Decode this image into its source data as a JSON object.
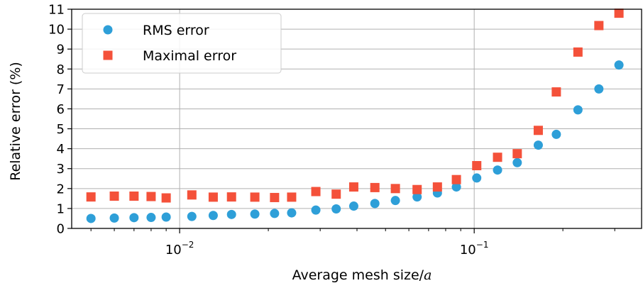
{
  "chart_data": {
    "type": "scatter",
    "title": "",
    "xlabel": "Average mesh size/",
    "xlabel_math": "a",
    "ylabel": "Relative error  (%)",
    "xscale": "log",
    "xlim": [
      0.0043,
      0.37
    ],
    "ylim": [
      0,
      11
    ],
    "grid": true,
    "legend_position": "upper-left",
    "yticks": [
      0,
      1,
      2,
      3,
      4,
      5,
      6,
      7,
      8,
      9,
      10,
      11
    ],
    "xticks": [
      {
        "value": 0.01,
        "base": "10",
        "exp": "−2"
      },
      {
        "value": 0.1,
        "base": "10",
        "exp": "−1"
      }
    ],
    "series": [
      {
        "name": "RMS error",
        "marker": "circle",
        "color": "#2e9fd8",
        "x": [
          0.005,
          0.006,
          0.007,
          0.008,
          0.009,
          0.011,
          0.013,
          0.015,
          0.018,
          0.021,
          0.024,
          0.029,
          0.034,
          0.039,
          0.046,
          0.054,
          0.064,
          0.075,
          0.087,
          0.102,
          0.12,
          0.14,
          0.165,
          0.19,
          0.225,
          0.265,
          0.31
        ],
        "y": [
          0.5,
          0.52,
          0.54,
          0.55,
          0.57,
          0.6,
          0.65,
          0.7,
          0.72,
          0.75,
          0.78,
          0.92,
          0.98,
          1.12,
          1.25,
          1.4,
          1.58,
          1.78,
          2.08,
          2.53,
          2.93,
          3.3,
          4.18,
          4.72,
          5.95,
          7.0,
          8.2
        ]
      },
      {
        "name": "Maximal error",
        "marker": "square",
        "color": "#f4513a",
        "x": [
          0.005,
          0.006,
          0.007,
          0.008,
          0.009,
          0.011,
          0.013,
          0.015,
          0.018,
          0.021,
          0.024,
          0.029,
          0.034,
          0.039,
          0.046,
          0.054,
          0.064,
          0.075,
          0.087,
          0.102,
          0.12,
          0.14,
          0.165,
          0.19,
          0.225,
          0.265,
          0.31
        ],
        "y": [
          1.58,
          1.62,
          1.62,
          1.6,
          1.53,
          1.68,
          1.57,
          1.58,
          1.57,
          1.55,
          1.57,
          1.85,
          1.72,
          2.08,
          2.05,
          2.0,
          1.95,
          2.08,
          2.45,
          3.15,
          3.57,
          3.75,
          4.92,
          6.85,
          8.85,
          10.18,
          10.8
        ]
      }
    ]
  }
}
